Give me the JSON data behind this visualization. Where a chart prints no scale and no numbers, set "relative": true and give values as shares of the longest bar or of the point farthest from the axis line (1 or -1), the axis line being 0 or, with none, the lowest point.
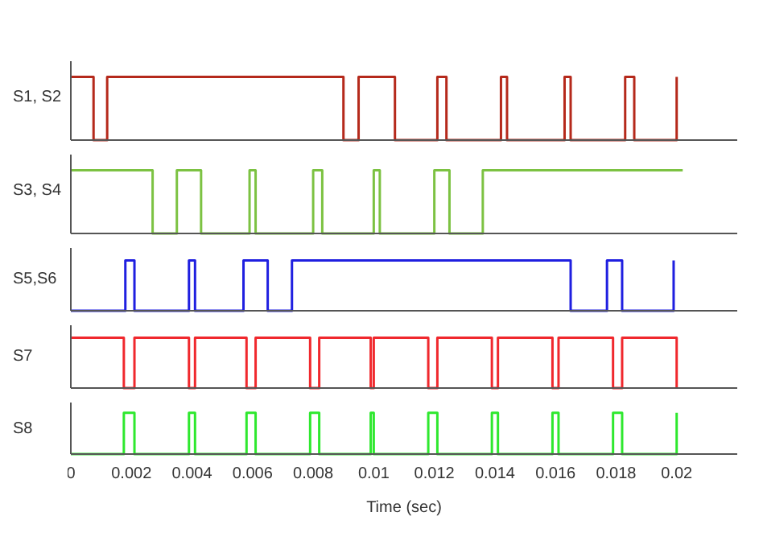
{
  "chart_data": [
    {
      "type": "step",
      "ylabel": "S1, S2",
      "relative": true,
      "tick_labels": false,
      "xlim": [
        0,
        0.022
      ],
      "xticks": [
        0,
        0.002,
        0.004,
        0.006,
        0.008,
        0.01,
        0.012,
        0.014,
        0.016,
        0.018,
        0.02
      ],
      "series": [
        {
          "color": "#b5291b",
          "x": [
            0,
            0.00075,
            0.0012,
            0.009,
            0.0095,
            0.0107,
            0.0121,
            0.0124,
            0.0142,
            0.0144,
            0.0163,
            0.0165,
            0.0183,
            0.0186,
            0.02
          ],
          "values": [
            1,
            0,
            1,
            0,
            1,
            0,
            1,
            0,
            1,
            0,
            1,
            0,
            1,
            0,
            1
          ]
        }
      ]
    },
    {
      "type": "step",
      "ylabel": "S3, S4",
      "relative": true,
      "tick_labels": false,
      "xlim": [
        0,
        0.022
      ],
      "xticks": [
        0,
        0.002,
        0.004,
        0.006,
        0.008,
        0.01,
        0.012,
        0.014,
        0.016,
        0.018,
        0.02
      ],
      "series": [
        {
          "color": "#7cc242",
          "x": [
            0,
            0.0027,
            0.0035,
            0.0043,
            0.0059,
            0.0061,
            0.008,
            0.0083,
            0.01,
            0.0102,
            0.012,
            0.0125,
            0.0136,
            0.0202
          ],
          "values": [
            1,
            0,
            1,
            0,
            1,
            0,
            1,
            0,
            1,
            0,
            1,
            0,
            1,
            1
          ]
        }
      ]
    },
    {
      "type": "step",
      "ylabel": "S5,S6",
      "relative": true,
      "tick_labels": false,
      "xlim": [
        0,
        0.022
      ],
      "xticks": [
        0,
        0.002,
        0.004,
        0.006,
        0.008,
        0.01,
        0.012,
        0.014,
        0.016,
        0.018,
        0.02
      ],
      "series": [
        {
          "color": "#1f1fe0",
          "x": [
            0,
            0.0018,
            0.0021,
            0.0039,
            0.0041,
            0.0057,
            0.0065,
            0.0073,
            0.0165,
            0.0177,
            0.0182,
            0.0199
          ],
          "values": [
            0,
            1,
            0,
            1,
            0,
            1,
            0,
            1,
            0,
            1,
            0,
            1
          ]
        }
      ]
    },
    {
      "type": "step",
      "ylabel": "S7",
      "relative": true,
      "tick_labels": false,
      "xlim": [
        0,
        0.022
      ],
      "xticks": [
        0,
        0.002,
        0.004,
        0.006,
        0.008,
        0.01,
        0.012,
        0.014,
        0.016,
        0.018,
        0.02
      ],
      "series": [
        {
          "color": "#f0282d",
          "x": [
            0,
            0.00175,
            0.0021,
            0.0039,
            0.0041,
            0.0058,
            0.0061,
            0.0079,
            0.0082,
            0.0099,
            0.01,
            0.0118,
            0.0121,
            0.0139,
            0.0141,
            0.0159,
            0.0161,
            0.0179,
            0.0182,
            0.02
          ],
          "values": [
            1,
            0,
            1,
            0,
            1,
            0,
            1,
            0,
            1,
            0,
            1,
            0,
            1,
            0,
            1,
            0,
            1,
            0,
            1,
            0
          ]
        }
      ]
    },
    {
      "type": "step",
      "ylabel": "S8",
      "xlabel": "Time (sec)",
      "relative": true,
      "tick_labels": "x",
      "xlim": [
        0,
        0.022
      ],
      "xticks": [
        0,
        0.002,
        0.004,
        0.006,
        0.008,
        0.01,
        0.012,
        0.014,
        0.016,
        0.018,
        0.02
      ],
      "series": [
        {
          "color": "#2ee82e",
          "x": [
            0,
            0.00175,
            0.0021,
            0.0039,
            0.0041,
            0.0058,
            0.0061,
            0.0079,
            0.0082,
            0.0099,
            0.01,
            0.0118,
            0.0121,
            0.0139,
            0.0141,
            0.0159,
            0.0161,
            0.0179,
            0.0182,
            0.02
          ],
          "values": [
            0,
            1,
            0,
            1,
            0,
            1,
            0,
            1,
            0,
            1,
            0,
            1,
            0,
            1,
            0,
            1,
            0,
            1,
            0,
            1
          ]
        }
      ]
    }
  ]
}
